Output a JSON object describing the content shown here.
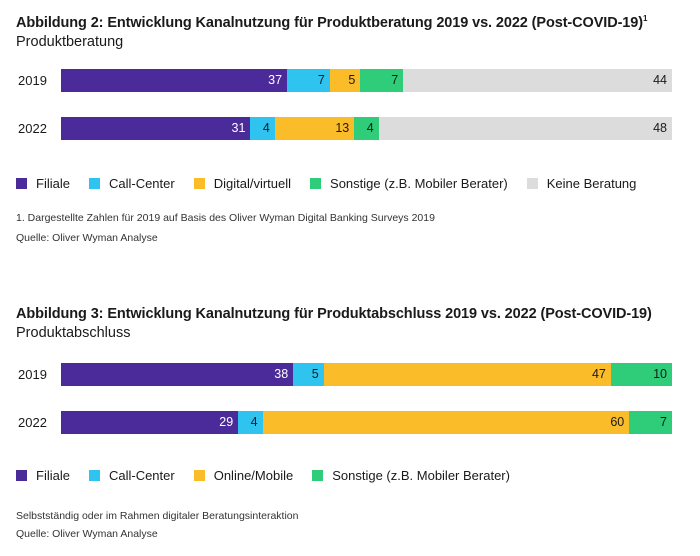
{
  "colors": {
    "filiale": "#4b2a9a",
    "callcenter": "#2ec4ef",
    "digital": "#fbbc2a",
    "sonstige": "#2fcc7a",
    "keine": "#dcdcdc"
  },
  "fig2": {
    "title": "Abbildung 2: Entwicklung Kanalnutzung für Produktberatung 2019 vs. 2022 (Post-COVID-19)",
    "title_sup": "1",
    "subtitle": "Produktberatung",
    "legend": [
      "Filiale",
      "Call-Center",
      "Digital/virtuell",
      "Sonstige (z.B. Mobiler Berater)",
      "Keine Beratung"
    ],
    "footnote": "1. Dargestellte Zahlen für 2019 auf Basis des Oliver Wyman Digital Banking Surveys 2019",
    "source": "Quelle: Oliver Wyman Analyse"
  },
  "fig3": {
    "title": "Abbildung 3: Entwicklung Kanalnutzung für Produktabschluss 2019 vs. 2022 (Post-COVID-19)",
    "subtitle": "Produktabschluss",
    "legend": [
      "Filiale",
      "Call-Center",
      "Online/Mobile",
      "Sonstige (z.B. Mobiler Berater)"
    ],
    "footnote": "Selbstständig oder im Rahmen digitaler Beratungsinteraktion",
    "source": "Quelle: Oliver Wyman Analyse"
  },
  "chart_data": [
    {
      "type": "bar",
      "stacked": true,
      "orientation": "horizontal",
      "title": "Abbildung 2: Entwicklung Kanalnutzung für Produktberatung 2019 vs. 2022 (Post-COVID-19)",
      "subtitle": "Produktberatung",
      "categories": [
        "2019",
        "2022"
      ],
      "series": [
        {
          "name": "Filiale",
          "values": [
            37,
            31
          ],
          "color": "#4b2a9a"
        },
        {
          "name": "Call-Center",
          "values": [
            7,
            4
          ],
          "color": "#2ec4ef"
        },
        {
          "name": "Digital/virtuell",
          "values": [
            5,
            13
          ],
          "color": "#fbbc2a"
        },
        {
          "name": "Sonstige (z.B. Mobiler Berater)",
          "values": [
            7,
            4
          ],
          "color": "#2fcc7a"
        },
        {
          "name": "Keine Beratung",
          "values": [
            44,
            48
          ],
          "color": "#dcdcdc"
        }
      ],
      "xlim": [
        0,
        100
      ],
      "legend_position": "bottom"
    },
    {
      "type": "bar",
      "stacked": true,
      "orientation": "horizontal",
      "title": "Abbildung 3: Entwicklung Kanalnutzung für Produktabschluss 2019 vs. 2022 (Post-COVID-19)",
      "subtitle": "Produktabschluss",
      "categories": [
        "2019",
        "2022"
      ],
      "series": [
        {
          "name": "Filiale",
          "values": [
            38,
            29
          ],
          "color": "#4b2a9a"
        },
        {
          "name": "Call-Center",
          "values": [
            5,
            4
          ],
          "color": "#2ec4ef"
        },
        {
          "name": "Online/Mobile",
          "values": [
            47,
            60
          ],
          "color": "#fbbc2a"
        },
        {
          "name": "Sonstige (z.B. Mobiler Berater)",
          "values": [
            10,
            7
          ],
          "color": "#2fcc7a"
        }
      ],
      "xlim": [
        0,
        100
      ],
      "legend_position": "bottom"
    }
  ]
}
